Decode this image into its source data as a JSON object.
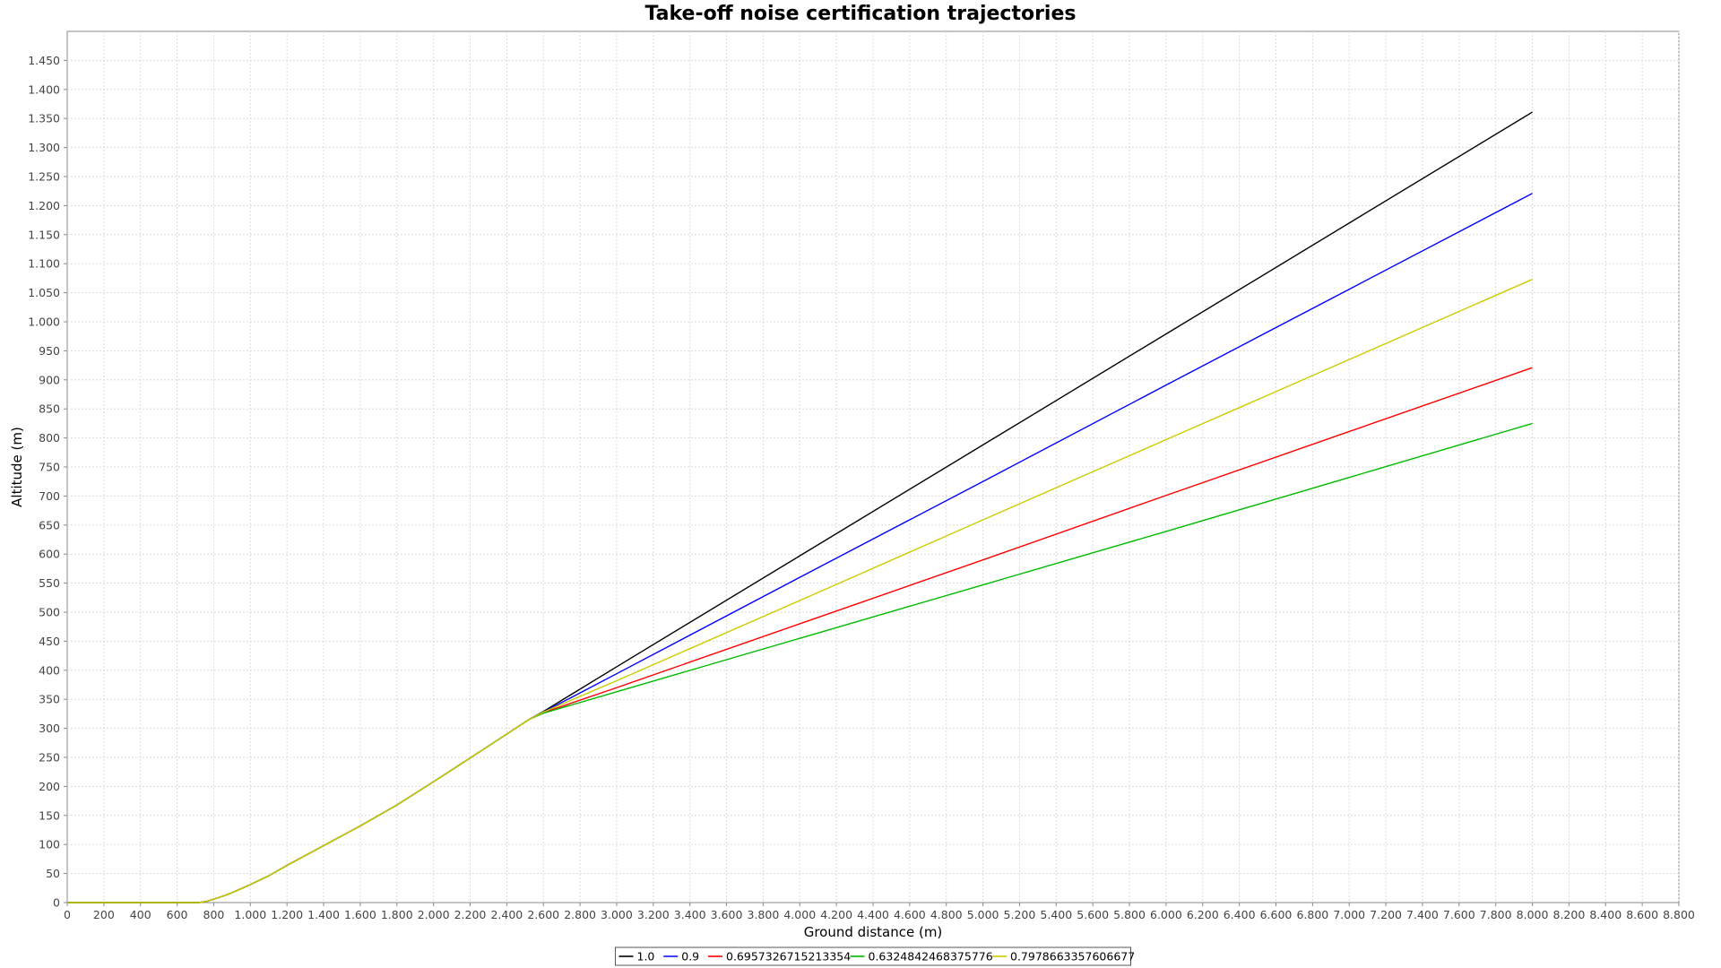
{
  "chart_data": {
    "type": "line",
    "title": "Take-off noise certification trajectories",
    "xlabel": "Ground distance (m)",
    "ylabel": "Altitude (m)",
    "xlim": [
      0,
      8800
    ],
    "ylim": [
      0,
      1500
    ],
    "x_ticks": [
      0,
      200,
      400,
      600,
      800,
      1000,
      1200,
      1400,
      1600,
      1800,
      2000,
      2200,
      2400,
      2600,
      2800,
      3000,
      3200,
      3400,
      3600,
      3800,
      4000,
      4200,
      4400,
      4600,
      4800,
      5000,
      5200,
      5400,
      5600,
      5800,
      6000,
      6200,
      6400,
      6600,
      6800,
      7000,
      7200,
      7400,
      7600,
      7800,
      8000,
      8200,
      8400,
      8600,
      8800
    ],
    "x_tick_labels": [
      "0",
      "200",
      "400",
      "600",
      "800",
      "1.000",
      "1.200",
      "1.400",
      "1.600",
      "1.800",
      "2.000",
      "2.200",
      "2.400",
      "2.600",
      "2.800",
      "3.000",
      "3.200",
      "3.400",
      "3.600",
      "3.800",
      "4.000",
      "4.200",
      "4.400",
      "4.600",
      "4.800",
      "5.000",
      "5.200",
      "5.400",
      "5.600",
      "5.800",
      "6.000",
      "6.200",
      "6.400",
      "6.600",
      "6.800",
      "7.000",
      "7.200",
      "7.400",
      "7.600",
      "7.800",
      "8.000",
      "8.200",
      "8.400",
      "8.600",
      "8.800"
    ],
    "y_ticks": [
      0,
      50,
      100,
      150,
      200,
      250,
      300,
      350,
      400,
      450,
      500,
      550,
      600,
      650,
      700,
      750,
      800,
      850,
      900,
      950,
      1000,
      1050,
      1100,
      1150,
      1200,
      1250,
      1300,
      1350,
      1400,
      1450
    ],
    "y_tick_labels": [
      "0",
      "50",
      "100",
      "150",
      "200",
      "250",
      "300",
      "350",
      "400",
      "450",
      "500",
      "550",
      "600",
      "650",
      "700",
      "750",
      "800",
      "850",
      "900",
      "950",
      "1.000",
      "1.050",
      "1.100",
      "1.150",
      "1.200",
      "1.250",
      "1.300",
      "1.350",
      "1.400",
      "1.450"
    ],
    "grid": true,
    "legend_position": "bottom-center",
    "series": [
      {
        "name": "1.0",
        "color": "#000000",
        "x": [
          0,
          720,
          760,
          800,
          850,
          900,
          950,
          1000,
          1100,
          1200,
          1300,
          1400,
          1600,
          1800,
          2000,
          2200,
          2400,
          2520,
          2600,
          3000,
          4000,
          5000,
          6000,
          7000,
          8000
        ],
        "y": [
          0,
          0,
          2,
          6,
          11,
          17,
          24,
          31,
          46,
          64,
          81,
          98,
          132,
          168,
          208,
          249,
          290,
          315,
          329,
          406,
          597,
          788,
          979,
          1170,
          1361
        ]
      },
      {
        "name": "0.9",
        "color": "#0000ff",
        "x": [
          0,
          720,
          760,
          800,
          850,
          900,
          950,
          1000,
          1100,
          1200,
          1300,
          1400,
          1600,
          1800,
          2000,
          2200,
          2400,
          2520,
          2600,
          3000,
          4000,
          5000,
          6000,
          7000,
          8000
        ],
        "y": [
          0,
          0,
          2,
          6,
          11,
          17,
          24,
          31,
          46,
          64,
          81,
          98,
          132,
          168,
          208,
          249,
          290,
          315,
          328,
          394,
          560,
          725,
          891,
          1056,
          1221
        ]
      },
      {
        "name": "0.6957326715213354",
        "color": "#ff0000",
        "x": [
          0,
          720,
          760,
          800,
          850,
          900,
          950,
          1000,
          1100,
          1200,
          1300,
          1400,
          1600,
          1800,
          2000,
          2200,
          2400,
          2520,
          2600,
          3000,
          4000,
          5000,
          6000,
          7000,
          8000
        ],
        "y": [
          0,
          0,
          2,
          6,
          11,
          17,
          24,
          31,
          46,
          64,
          81,
          98,
          132,
          168,
          208,
          249,
          290,
          315,
          327,
          370,
          480,
          590,
          701,
          811,
          921
        ]
      },
      {
        "name": "0.6324842468375776",
        "color": "#00bb00",
        "x": [
          0,
          720,
          760,
          800,
          850,
          900,
          950,
          1000,
          1100,
          1200,
          1300,
          1400,
          1600,
          1800,
          2000,
          2200,
          2400,
          2520,
          2600,
          3000,
          4000,
          5000,
          6000,
          7000,
          8000
        ],
        "y": [
          0,
          0,
          2,
          6,
          11,
          17,
          24,
          31,
          46,
          64,
          81,
          98,
          132,
          168,
          208,
          249,
          290,
          315,
          326,
          363,
          455,
          547,
          639,
          732,
          825
        ]
      },
      {
        "name": "0.7978663357606677",
        "color": "#cccc00",
        "x": [
          0,
          720,
          760,
          800,
          850,
          900,
          950,
          1000,
          1100,
          1200,
          1300,
          1400,
          1600,
          1800,
          2000,
          2200,
          2400,
          2520,
          2600,
          3000,
          4000,
          5000,
          6000,
          7000,
          8000
        ],
        "y": [
          0,
          0,
          2,
          6,
          11,
          17,
          24,
          31,
          46,
          64,
          81,
          98,
          132,
          168,
          208,
          249,
          290,
          315,
          328,
          382,
          520,
          659,
          797,
          935,
          1073
        ]
      }
    ]
  }
}
